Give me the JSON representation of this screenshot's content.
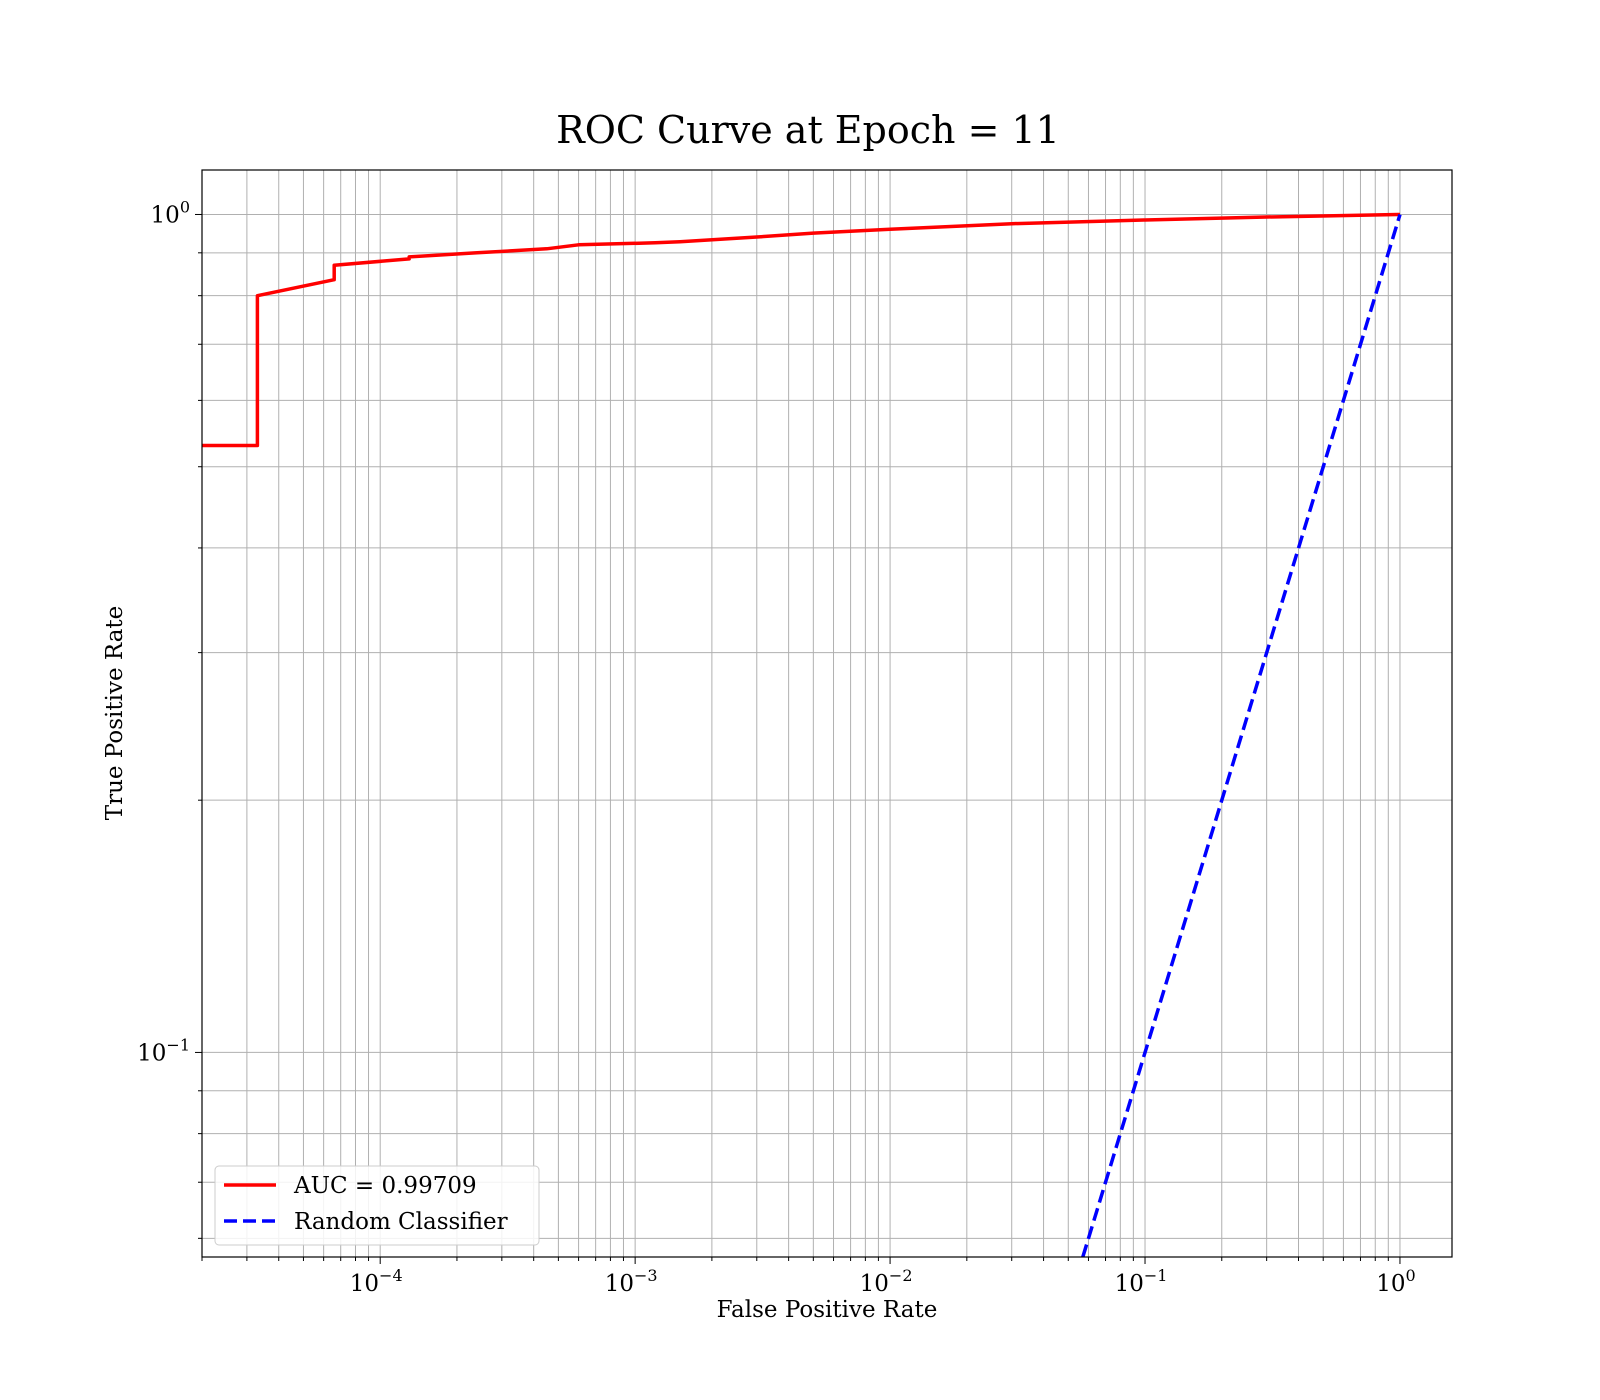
{
  "chart_data": {
    "type": "line",
    "title": "ROC Curve at Epoch = 11",
    "xlabel": "False Positive Rate",
    "ylabel": "True Positive Rate",
    "xscale": "log",
    "yscale": "log",
    "xlim": [
      2e-05,
      1.6
    ],
    "ylim": [
      0.057,
      1.13
    ],
    "grid": "both major and minor",
    "legend_placement": "lower-left",
    "x_ticks": [
      {
        "value": 0.0001,
        "base": "10",
        "exp": "−4"
      },
      {
        "value": 0.001,
        "base": "10",
        "exp": "−3"
      },
      {
        "value": 0.01,
        "base": "10",
        "exp": "−2"
      },
      {
        "value": 0.1,
        "base": "10",
        "exp": "−1"
      },
      {
        "value": 1,
        "base": "10",
        "exp": "0"
      }
    ],
    "y_ticks": [
      {
        "value": 0.1,
        "base": "10",
        "exp": "−1"
      },
      {
        "value": 1,
        "base": "10",
        "exp": "0"
      }
    ],
    "series": [
      {
        "name": "AUC = 0.99709",
        "color": "#ff0000",
        "style": "solid",
        "x": [
          2e-05,
          3.3e-05,
          3.3e-05,
          6.6e-05,
          6.6e-05,
          0.00013,
          0.00013,
          0.00024,
          0.00033,
          0.00045,
          0.0006,
          0.0012,
          0.0015,
          0.003,
          0.005,
          0.01,
          0.03,
          0.1,
          0.3,
          1.0
        ],
        "y": [
          0.53,
          0.53,
          0.8,
          0.836,
          0.87,
          0.885,
          0.89,
          0.9,
          0.905,
          0.91,
          0.92,
          0.925,
          0.928,
          0.94,
          0.95,
          0.96,
          0.975,
          0.985,
          0.993,
          1.0
        ]
      },
      {
        "name": "Random Classifier",
        "color": "#0000ff",
        "style": "dashed",
        "x": [
          0.057,
          1.0
        ],
        "y": [
          0.057,
          1.0
        ]
      }
    ]
  }
}
